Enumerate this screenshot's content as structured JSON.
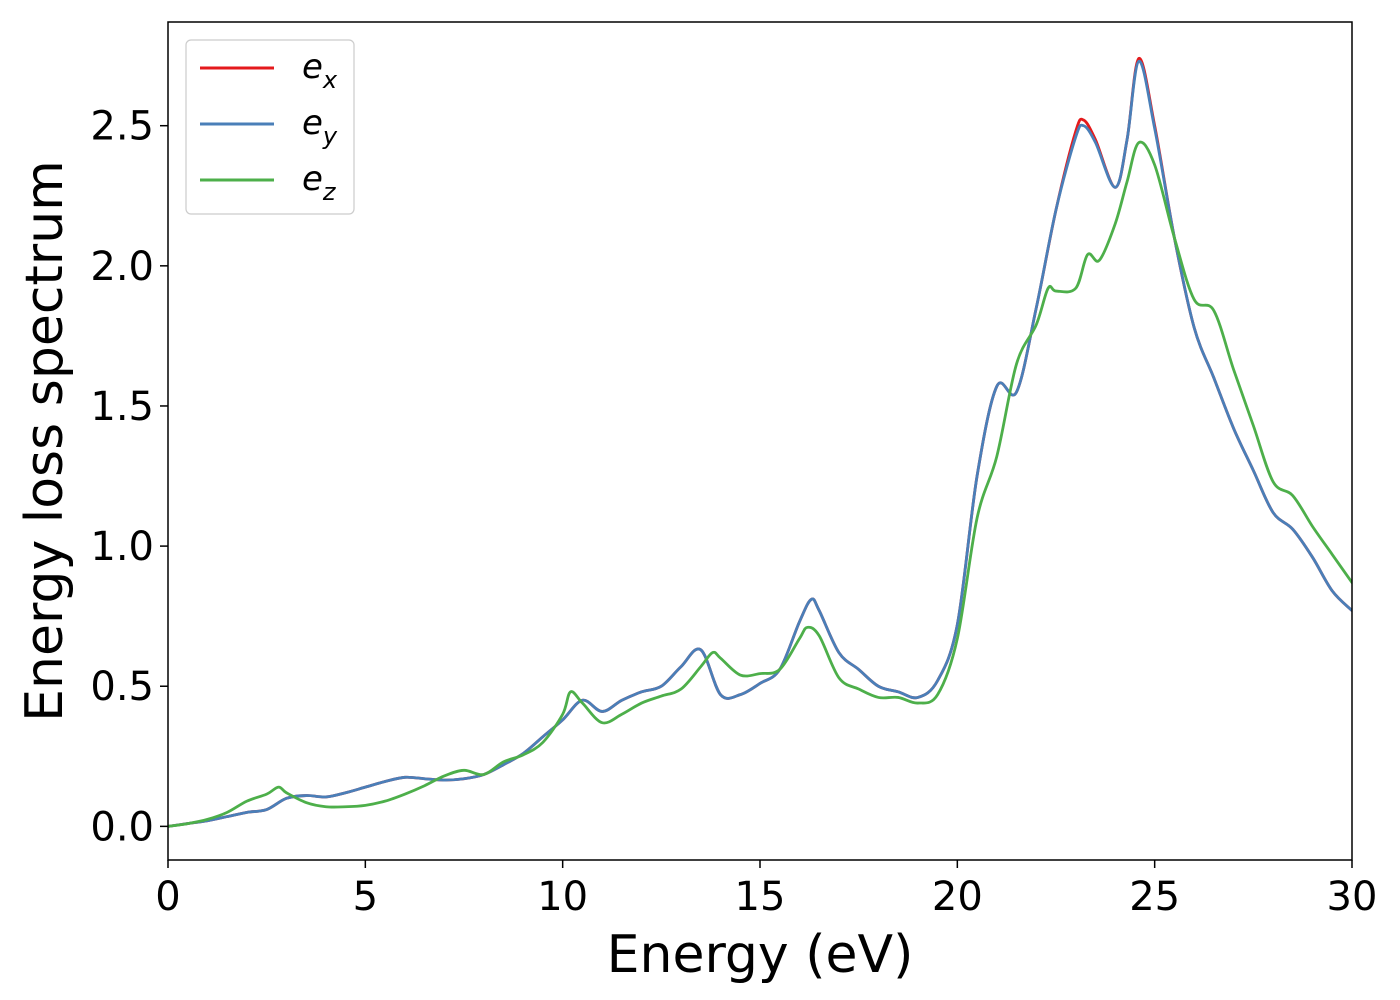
{
  "chart_data": {
    "type": "line",
    "xlabel": "Energy (eV)",
    "ylabel": "Energy loss spectrum",
    "xlim": [
      0,
      30
    ],
    "ylim": [
      -0.12,
      2.87
    ],
    "xticks": [
      "0",
      "5",
      "10",
      "15",
      "20",
      "25",
      "30"
    ],
    "yticks": [
      "0.0",
      "0.5",
      "1.0",
      "1.5",
      "2.0",
      "2.5"
    ],
    "grid": false,
    "legend_position": "top-left",
    "series": [
      {
        "name": "e_x",
        "legend_base": "e",
        "legend_sub": "x",
        "color": "#e41a1c",
        "x": [
          0,
          0.5,
          1,
          1.5,
          2,
          2.5,
          3,
          3.5,
          4,
          4.5,
          5,
          5.5,
          6,
          6.5,
          7,
          7.5,
          8,
          8.5,
          9,
          9.5,
          10,
          10.5,
          11,
          11.5,
          12,
          12.5,
          13,
          13.5,
          14,
          14.5,
          15,
          15.5,
          16,
          16.3,
          16.5,
          17,
          17.5,
          18,
          18.5,
          19,
          19.5,
          20,
          20.5,
          21,
          21.5,
          22,
          22.5,
          23,
          23.2,
          23.5,
          24,
          24.3,
          24.6,
          25,
          25.5,
          26,
          26.5,
          27,
          27.5,
          28,
          28.5,
          29,
          29.5,
          30
        ],
        "y": [
          0.0,
          0.01,
          0.02,
          0.035,
          0.05,
          0.06,
          0.1,
          0.11,
          0.105,
          0.12,
          0.14,
          0.16,
          0.175,
          0.17,
          0.165,
          0.17,
          0.185,
          0.22,
          0.26,
          0.32,
          0.38,
          0.45,
          0.41,
          0.45,
          0.48,
          0.5,
          0.57,
          0.63,
          0.47,
          0.47,
          0.51,
          0.56,
          0.73,
          0.81,
          0.77,
          0.62,
          0.56,
          0.5,
          0.48,
          0.46,
          0.52,
          0.72,
          1.25,
          1.57,
          1.55,
          1.85,
          2.2,
          2.48,
          2.52,
          2.45,
          2.28,
          2.45,
          2.74,
          2.5,
          2.1,
          1.78,
          1.6,
          1.42,
          1.27,
          1.12,
          1.06,
          0.96,
          0.84,
          0.77
        ]
      },
      {
        "name": "e_y",
        "legend_base": "e",
        "legend_sub": "y",
        "color": "#4a7fb8",
        "x": [
          0,
          0.5,
          1,
          1.5,
          2,
          2.5,
          3,
          3.5,
          4,
          4.5,
          5,
          5.5,
          6,
          6.5,
          7,
          7.5,
          8,
          8.5,
          9,
          9.5,
          10,
          10.5,
          11,
          11.5,
          12,
          12.5,
          13,
          13.5,
          14,
          14.5,
          15,
          15.5,
          16,
          16.3,
          16.5,
          17,
          17.5,
          18,
          18.5,
          19,
          19.5,
          20,
          20.5,
          21,
          21.5,
          22,
          22.5,
          23,
          23.2,
          23.5,
          24,
          24.3,
          24.6,
          25,
          25.5,
          26,
          26.5,
          27,
          27.5,
          28,
          28.5,
          29,
          29.5,
          30
        ],
        "y": [
          0.0,
          0.01,
          0.02,
          0.035,
          0.05,
          0.06,
          0.1,
          0.11,
          0.105,
          0.12,
          0.14,
          0.16,
          0.175,
          0.17,
          0.165,
          0.17,
          0.185,
          0.22,
          0.26,
          0.32,
          0.38,
          0.45,
          0.41,
          0.45,
          0.48,
          0.5,
          0.57,
          0.63,
          0.47,
          0.47,
          0.51,
          0.56,
          0.73,
          0.81,
          0.77,
          0.62,
          0.56,
          0.5,
          0.48,
          0.46,
          0.52,
          0.72,
          1.25,
          1.57,
          1.55,
          1.85,
          2.2,
          2.46,
          2.5,
          2.44,
          2.28,
          2.45,
          2.73,
          2.49,
          2.1,
          1.78,
          1.6,
          1.42,
          1.27,
          1.12,
          1.06,
          0.96,
          0.84,
          0.77
        ]
      },
      {
        "name": "e_z",
        "legend_base": "e",
        "legend_sub": "z",
        "color": "#4daf4a",
        "x": [
          0,
          0.5,
          1,
          1.5,
          2,
          2.5,
          2.8,
          3,
          3.5,
          4,
          4.5,
          5,
          5.5,
          6,
          6.5,
          7,
          7.5,
          8,
          8.5,
          9,
          9.5,
          10,
          10.2,
          10.5,
          11,
          11.5,
          12,
          12.5,
          13,
          13.5,
          13.8,
          14,
          14.5,
          15,
          15.5,
          16,
          16.2,
          16.5,
          17,
          17.5,
          18,
          18.5,
          19,
          19.5,
          20,
          20.5,
          21,
          21.5,
          22,
          22.3,
          22.5,
          23,
          23.3,
          23.6,
          24,
          24.3,
          24.6,
          25,
          25.5,
          26,
          26.5,
          27,
          27.5,
          28,
          28.5,
          29,
          29.5,
          30
        ],
        "y": [
          0.0,
          0.01,
          0.025,
          0.05,
          0.09,
          0.115,
          0.14,
          0.12,
          0.085,
          0.07,
          0.07,
          0.075,
          0.09,
          0.115,
          0.145,
          0.18,
          0.2,
          0.185,
          0.23,
          0.255,
          0.3,
          0.4,
          0.48,
          0.44,
          0.37,
          0.4,
          0.44,
          0.465,
          0.49,
          0.57,
          0.62,
          0.6,
          0.54,
          0.545,
          0.56,
          0.67,
          0.71,
          0.68,
          0.53,
          0.49,
          0.46,
          0.46,
          0.44,
          0.47,
          0.67,
          1.1,
          1.32,
          1.65,
          1.79,
          1.92,
          1.91,
          1.92,
          2.04,
          2.02,
          2.15,
          2.3,
          2.44,
          2.36,
          2.1,
          1.88,
          1.84,
          1.63,
          1.43,
          1.23,
          1.18,
          1.07,
          0.97,
          0.87
        ]
      }
    ]
  }
}
